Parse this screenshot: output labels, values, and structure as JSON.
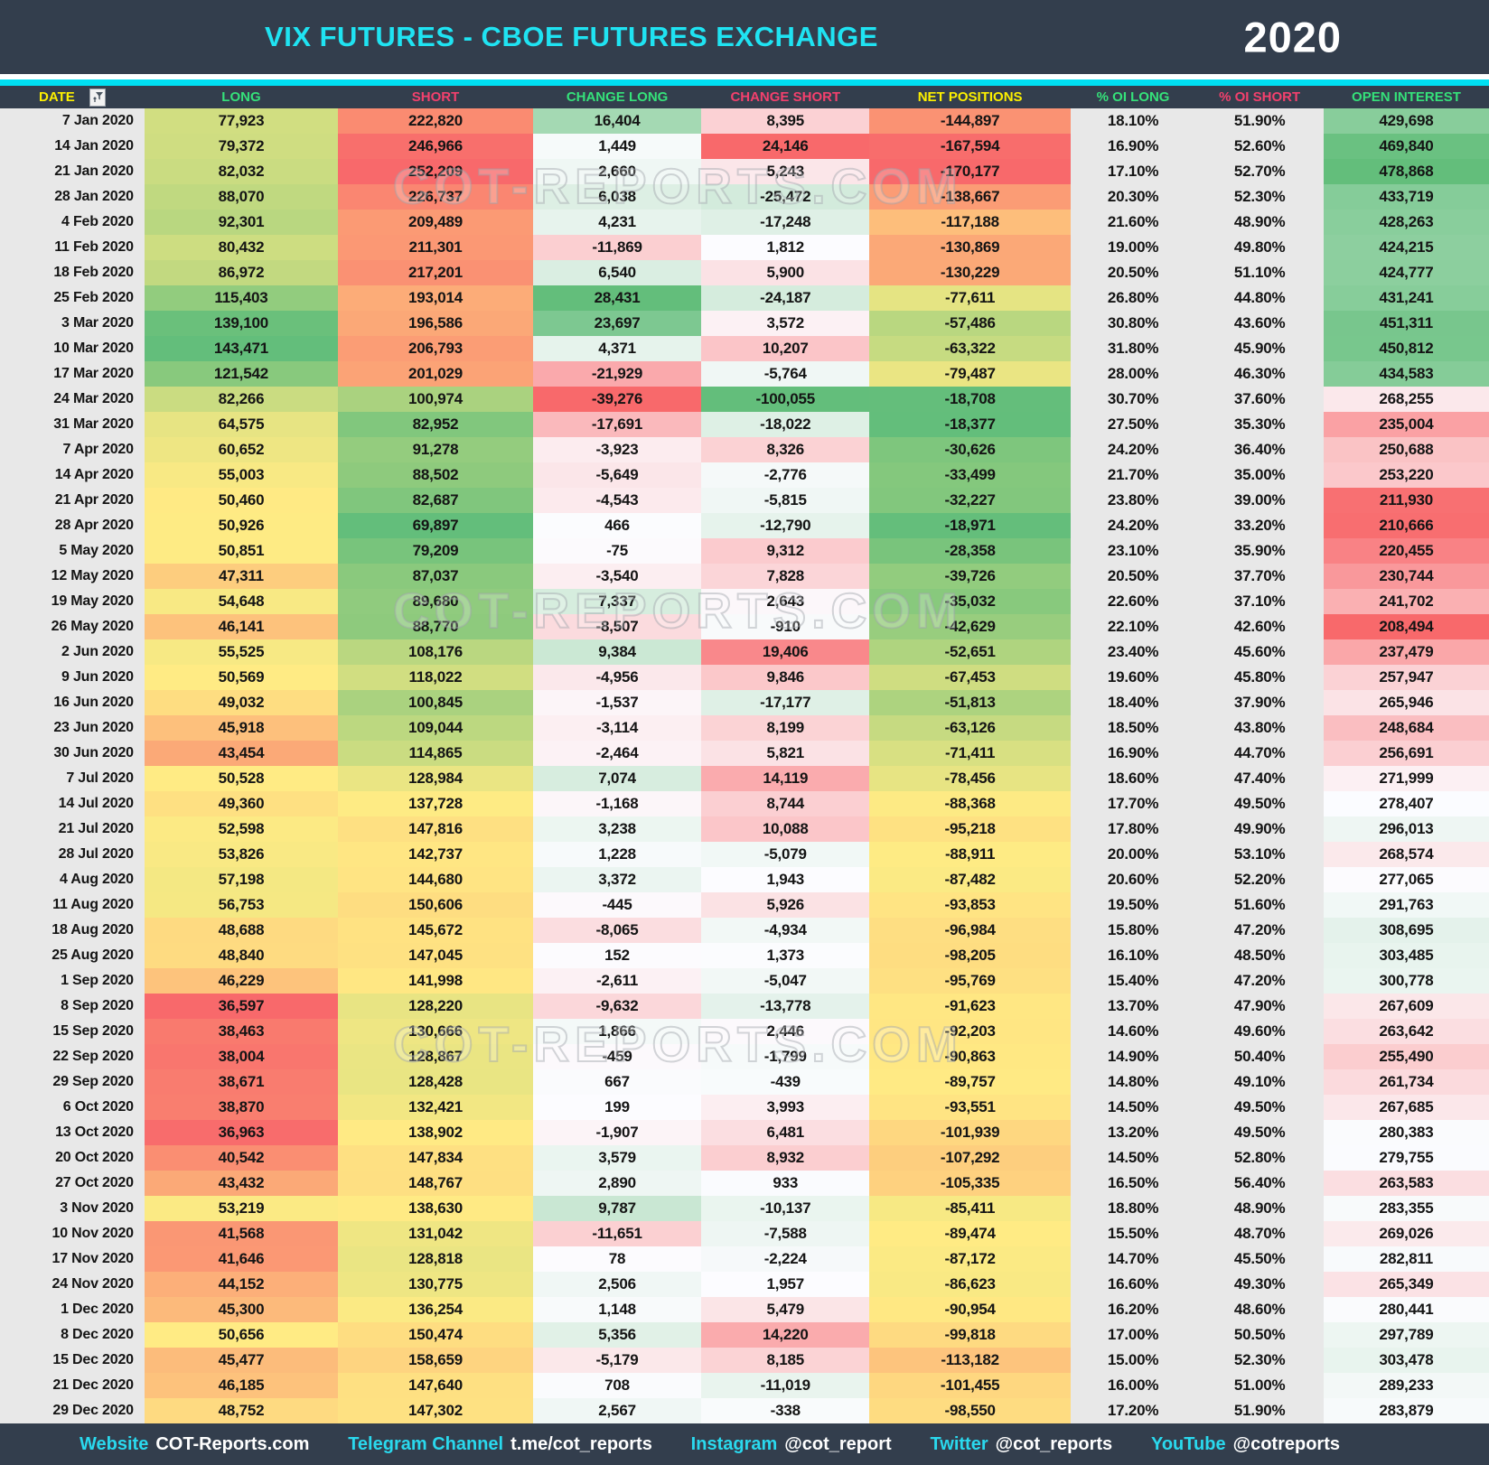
{
  "header": {
    "title": "VIX FUTURES - CBOE FUTURES EXCHANGE",
    "year": "2020"
  },
  "watermark": {
    "text": "COT-REPORTS.COM"
  },
  "colors": {
    "navy": "#333e4d",
    "stripe_cyan": "#00dff2",
    "title_cyan": "#1fe3f2",
    "cell_gray": "#e8e8e8",
    "header_yellow": "#fdf000",
    "header_green": "#35e27a",
    "header_pink": "#f4406d",
    "text_black": "#141414"
  },
  "scales": {
    "ryg": [
      "#F8696B",
      "#FFEB84",
      "#63BE7B"
    ],
    "gyr": [
      "#63BE7B",
      "#FFEB84",
      "#F8696B"
    ],
    "rwg": [
      "#F8696B",
      "#FCFCFF",
      "#63BE7B"
    ],
    "gwr": [
      "#63BE7B",
      "#FCFCFF",
      "#F8696B"
    ]
  },
  "table": {
    "columns": [
      {
        "key": "date",
        "label": "DATE",
        "color_key": "header_yellow",
        "width": 9.7,
        "scale": "none",
        "has_filter": true
      },
      {
        "key": "long",
        "label": "LONG",
        "color_key": "header_green",
        "width": 13.0,
        "scale": "ryg"
      },
      {
        "key": "short",
        "label": "SHORT",
        "color_key": "header_pink",
        "width": 13.1,
        "scale": "gyr"
      },
      {
        "key": "change_long",
        "label": "CHANGE LONG",
        "color_key": "header_green",
        "width": 11.3,
        "scale": "rwg"
      },
      {
        "key": "change_short",
        "label": "CHANGE SHORT",
        "color_key": "header_pink",
        "width": 11.3,
        "scale": "gwr"
      },
      {
        "key": "net_positions",
        "label": "NET POSITIONS",
        "color_key": "header_yellow",
        "width": 13.5,
        "scale": "ryg"
      },
      {
        "key": "pct_oi_long",
        "label": "% OI LONG",
        "color_key": "header_green",
        "width": 8.4,
        "scale": "none"
      },
      {
        "key": "pct_oi_short",
        "label": "% OI SHORT",
        "color_key": "header_pink",
        "width": 8.6,
        "scale": "none"
      },
      {
        "key": "open_interest",
        "label": "OPEN INTEREST",
        "color_key": "header_green",
        "width": 11.1,
        "scale": "rwg"
      }
    ],
    "rows": [
      [
        "7 Jan 2020",
        "77,923",
        "222,820",
        "16,404",
        "8,395",
        "-144,897",
        "18.10%",
        "51.90%",
        "429,698"
      ],
      [
        "14 Jan 2020",
        "79,372",
        "246,966",
        "1,449",
        "24,146",
        "-167,594",
        "16.90%",
        "52.60%",
        "469,840"
      ],
      [
        "21 Jan 2020",
        "82,032",
        "252,209",
        "2,660",
        "5,243",
        "-170,177",
        "17.10%",
        "52.70%",
        "478,868"
      ],
      [
        "28 Jan 2020",
        "88,070",
        "226,737",
        "6,038",
        "-25,472",
        "-138,667",
        "20.30%",
        "52.30%",
        "433,719"
      ],
      [
        "4 Feb 2020",
        "92,301",
        "209,489",
        "4,231",
        "-17,248",
        "-117,188",
        "21.60%",
        "48.90%",
        "428,263"
      ],
      [
        "11 Feb 2020",
        "80,432",
        "211,301",
        "-11,869",
        "1,812",
        "-130,869",
        "19.00%",
        "49.80%",
        "424,215"
      ],
      [
        "18 Feb 2020",
        "86,972",
        "217,201",
        "6,540",
        "5,900",
        "-130,229",
        "20.50%",
        "51.10%",
        "424,777"
      ],
      [
        "25 Feb 2020",
        "115,403",
        "193,014",
        "28,431",
        "-24,187",
        "-77,611",
        "26.80%",
        "44.80%",
        "431,241"
      ],
      [
        "3 Mar 2020",
        "139,100",
        "196,586",
        "23,697",
        "3,572",
        "-57,486",
        "30.80%",
        "43.60%",
        "451,311"
      ],
      [
        "10 Mar 2020",
        "143,471",
        "206,793",
        "4,371",
        "10,207",
        "-63,322",
        "31.80%",
        "45.90%",
        "450,812"
      ],
      [
        "17 Mar 2020",
        "121,542",
        "201,029",
        "-21,929",
        "-5,764",
        "-79,487",
        "28.00%",
        "46.30%",
        "434,583"
      ],
      [
        "24 Mar 2020",
        "82,266",
        "100,974",
        "-39,276",
        "-100,055",
        "-18,708",
        "30.70%",
        "37.60%",
        "268,255"
      ],
      [
        "31 Mar 2020",
        "64,575",
        "82,952",
        "-17,691",
        "-18,022",
        "-18,377",
        "27.50%",
        "35.30%",
        "235,004"
      ],
      [
        "7 Apr 2020",
        "60,652",
        "91,278",
        "-3,923",
        "8,326",
        "-30,626",
        "24.20%",
        "36.40%",
        "250,688"
      ],
      [
        "14 Apr 2020",
        "55,003",
        "88,502",
        "-5,649",
        "-2,776",
        "-33,499",
        "21.70%",
        "35.00%",
        "253,220"
      ],
      [
        "21 Apr 2020",
        "50,460",
        "82,687",
        "-4,543",
        "-5,815",
        "-32,227",
        "23.80%",
        "39.00%",
        "211,930"
      ],
      [
        "28 Apr 2020",
        "50,926",
        "69,897",
        "466",
        "-12,790",
        "-18,971",
        "24.20%",
        "33.20%",
        "210,666"
      ],
      [
        "5 May 2020",
        "50,851",
        "79,209",
        "-75",
        "9,312",
        "-28,358",
        "23.10%",
        "35.90%",
        "220,455"
      ],
      [
        "12 May 2020",
        "47,311",
        "87,037",
        "-3,540",
        "7,828",
        "-39,726",
        "20.50%",
        "37.70%",
        "230,744"
      ],
      [
        "19 May 2020",
        "54,648",
        "89,680",
        "7,337",
        "2,643",
        "-35,032",
        "22.60%",
        "37.10%",
        "241,702"
      ],
      [
        "26 May 2020",
        "46,141",
        "88,770",
        "-8,507",
        "-910",
        "-42,629",
        "22.10%",
        "42.60%",
        "208,494"
      ],
      [
        "2 Jun 2020",
        "55,525",
        "108,176",
        "9,384",
        "19,406",
        "-52,651",
        "23.40%",
        "45.60%",
        "237,479"
      ],
      [
        "9 Jun 2020",
        "50,569",
        "118,022",
        "-4,956",
        "9,846",
        "-67,453",
        "19.60%",
        "45.80%",
        "257,947"
      ],
      [
        "16 Jun 2020",
        "49,032",
        "100,845",
        "-1,537",
        "-17,177",
        "-51,813",
        "18.40%",
        "37.90%",
        "265,946"
      ],
      [
        "23 Jun 2020",
        "45,918",
        "109,044",
        "-3,114",
        "8,199",
        "-63,126",
        "18.50%",
        "43.80%",
        "248,684"
      ],
      [
        "30 Jun 2020",
        "43,454",
        "114,865",
        "-2,464",
        "5,821",
        "-71,411",
        "16.90%",
        "44.70%",
        "256,691"
      ],
      [
        "7 Jul 2020",
        "50,528",
        "128,984",
        "7,074",
        "14,119",
        "-78,456",
        "18.60%",
        "47.40%",
        "271,999"
      ],
      [
        "14 Jul 2020",
        "49,360",
        "137,728",
        "-1,168",
        "8,744",
        "-88,368",
        "17.70%",
        "49.50%",
        "278,407"
      ],
      [
        "21 Jul 2020",
        "52,598",
        "147,816",
        "3,238",
        "10,088",
        "-95,218",
        "17.80%",
        "49.90%",
        "296,013"
      ],
      [
        "28 Jul 2020",
        "53,826",
        "142,737",
        "1,228",
        "-5,079",
        "-88,911",
        "20.00%",
        "53.10%",
        "268,574"
      ],
      [
        "4 Aug 2020",
        "57,198",
        "144,680",
        "3,372",
        "1,943",
        "-87,482",
        "20.60%",
        "52.20%",
        "277,065"
      ],
      [
        "11 Aug 2020",
        "56,753",
        "150,606",
        "-445",
        "5,926",
        "-93,853",
        "19.50%",
        "51.60%",
        "291,763"
      ],
      [
        "18 Aug 2020",
        "48,688",
        "145,672",
        "-8,065",
        "-4,934",
        "-96,984",
        "15.80%",
        "47.20%",
        "308,695"
      ],
      [
        "25 Aug 2020",
        "48,840",
        "147,045",
        "152",
        "1,373",
        "-98,205",
        "16.10%",
        "48.50%",
        "303,485"
      ],
      [
        "1 Sep 2020",
        "46,229",
        "141,998",
        "-2,611",
        "-5,047",
        "-95,769",
        "15.40%",
        "47.20%",
        "300,778"
      ],
      [
        "8 Sep 2020",
        "36,597",
        "128,220",
        "-9,632",
        "-13,778",
        "-91,623",
        "13.70%",
        "47.90%",
        "267,609"
      ],
      [
        "15 Sep 2020",
        "38,463",
        "130,666",
        "1,866",
        "2,446",
        "-92,203",
        "14.60%",
        "49.60%",
        "263,642"
      ],
      [
        "22 Sep 2020",
        "38,004",
        "128,867",
        "-459",
        "-1,799",
        "-90,863",
        "14.90%",
        "50.40%",
        "255,490"
      ],
      [
        "29 Sep 2020",
        "38,671",
        "128,428",
        "667",
        "-439",
        "-89,757",
        "14.80%",
        "49.10%",
        "261,734"
      ],
      [
        "6 Oct 2020",
        "38,870",
        "132,421",
        "199",
        "3,993",
        "-93,551",
        "14.50%",
        "49.50%",
        "267,685"
      ],
      [
        "13 Oct 2020",
        "36,963",
        "138,902",
        "-1,907",
        "6,481",
        "-101,939",
        "13.20%",
        "49.50%",
        "280,383"
      ],
      [
        "20 Oct 2020",
        "40,542",
        "147,834",
        "3,579",
        "8,932",
        "-107,292",
        "14.50%",
        "52.80%",
        "279,755"
      ],
      [
        "27 Oct 2020",
        "43,432",
        "148,767",
        "2,890",
        "933",
        "-105,335",
        "16.50%",
        "56.40%",
        "263,583"
      ],
      [
        "3 Nov 2020",
        "53,219",
        "138,630",
        "9,787",
        "-10,137",
        "-85,411",
        "18.80%",
        "48.90%",
        "283,355"
      ],
      [
        "10 Nov 2020",
        "41,568",
        "131,042",
        "-11,651",
        "-7,588",
        "-89,474",
        "15.50%",
        "48.70%",
        "269,026"
      ],
      [
        "17 Nov 2020",
        "41,646",
        "128,818",
        "78",
        "-2,224",
        "-87,172",
        "14.70%",
        "45.50%",
        "282,811"
      ],
      [
        "24 Nov 2020",
        "44,152",
        "130,775",
        "2,506",
        "1,957",
        "-86,623",
        "16.60%",
        "49.30%",
        "265,349"
      ],
      [
        "1 Dec 2020",
        "45,300",
        "136,254",
        "1,148",
        "5,479",
        "-90,954",
        "16.20%",
        "48.60%",
        "280,441"
      ],
      [
        "8 Dec 2020",
        "50,656",
        "150,474",
        "5,356",
        "14,220",
        "-99,818",
        "17.00%",
        "50.50%",
        "297,789"
      ],
      [
        "15 Dec 2020",
        "45,477",
        "158,659",
        "-5,179",
        "8,185",
        "-113,182",
        "15.00%",
        "52.30%",
        "303,478"
      ],
      [
        "21 Dec 2020",
        "46,185",
        "147,640",
        "708",
        "-11,019",
        "-101,455",
        "16.00%",
        "51.00%",
        "289,233"
      ],
      [
        "29 Dec 2020",
        "48,752",
        "147,302",
        "2,567",
        "-338",
        "-98,550",
        "17.20%",
        "51.90%",
        "283,879"
      ]
    ]
  },
  "footer": {
    "items": [
      {
        "label": "Website",
        "value": "COT-Reports.com"
      },
      {
        "label": "Telegram Channel",
        "value": "t.me/cot_reports"
      },
      {
        "label": "Instagram",
        "value": "@cot_report"
      },
      {
        "label": "Twitter",
        "value": "@cot_reports"
      },
      {
        "label": "YouTube",
        "value": "@cotreports"
      }
    ]
  }
}
